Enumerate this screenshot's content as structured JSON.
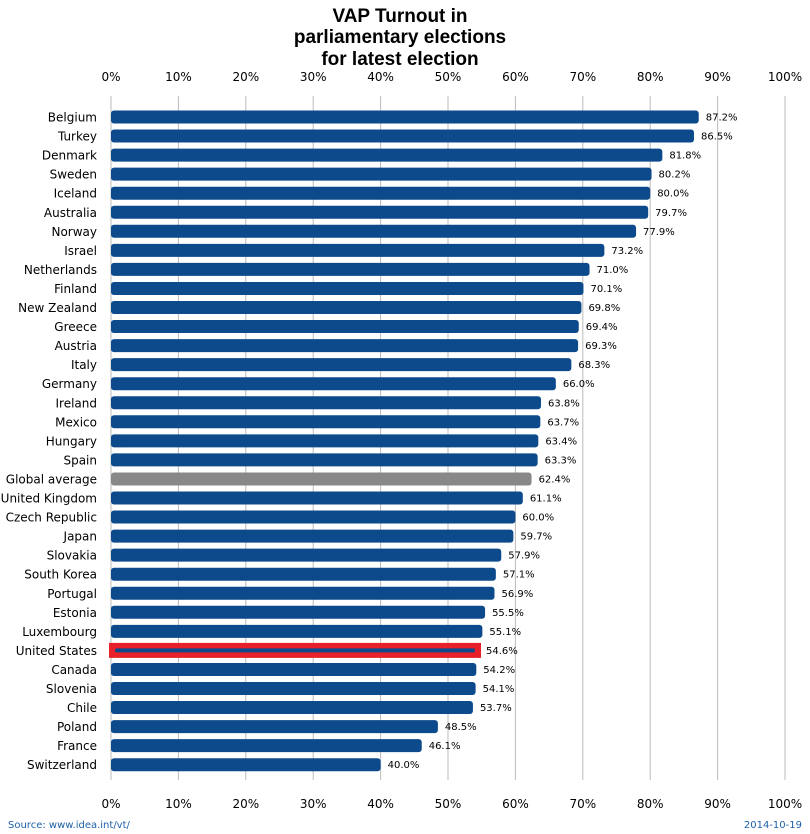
{
  "chart_data": {
    "type": "bar",
    "orientation": "horizontal",
    "title": [
      "VAP Turnout in",
      "parliamentary elections",
      "for latest election"
    ],
    "xlim": [
      0,
      100
    ],
    "x_ticks": [
      "0%",
      "10%",
      "20%",
      "30%",
      "40%",
      "50%",
      "60%",
      "70%",
      "80%",
      "90%",
      "100%"
    ],
    "grid": true,
    "categories": [
      "Belgium",
      "Turkey",
      "Denmark",
      "Sweden",
      "Iceland",
      "Australia",
      "Norway",
      "Israel",
      "Netherlands",
      "Finland",
      "New Zealand",
      "Greece",
      "Austria",
      "Italy",
      "Germany",
      "Ireland",
      "Mexico",
      "Hungary",
      "Spain",
      "Global average",
      "United Kingdom",
      "Czech Republic",
      "Japan",
      "Slovakia",
      "South Korea",
      "Portugal",
      "Estonia",
      "Luxembourg",
      "United States",
      "Canada",
      "Slovenia",
      "Chile",
      "Poland",
      "France",
      "Switzerland"
    ],
    "values": [
      87.2,
      86.5,
      81.8,
      80.2,
      80.0,
      79.7,
      77.9,
      73.2,
      71.0,
      70.1,
      69.8,
      69.4,
      69.3,
      68.3,
      66.0,
      63.8,
      63.7,
      63.4,
      63.3,
      62.4,
      61.1,
      60.0,
      59.7,
      57.9,
      57.1,
      56.9,
      55.5,
      55.1,
      54.6,
      54.2,
      54.1,
      53.7,
      48.5,
      46.1,
      40.0
    ],
    "value_labels": [
      "87.2%",
      "86.5%",
      "81.8%",
      "80.2%",
      "80.0%",
      "79.7%",
      "77.9%",
      "73.2%",
      "71.0%",
      "70.1%",
      "69.8%",
      "69.4%",
      "69.3%",
      "68.3%",
      "66.0%",
      "63.8%",
      "63.7%",
      "63.4%",
      "63.3%",
      "62.4%",
      "61.1%",
      "60.0%",
      "59.7%",
      "57.9%",
      "57.1%",
      "56.9%",
      "55.5%",
      "55.1%",
      "54.6%",
      "54.2%",
      "54.1%",
      "53.7%",
      "48.5%",
      "46.1%",
      "40.0%"
    ],
    "highlight_gray": "Global average",
    "highlight_box": "United States",
    "colors": {
      "bar": "#0c4a8c",
      "global_average": "#888888",
      "highlight_box": "#e8202a",
      "grid": "#bbbbbb"
    }
  },
  "footer": {
    "source": "Source: www.idea.int/vt/",
    "date": "2014-10-19"
  }
}
